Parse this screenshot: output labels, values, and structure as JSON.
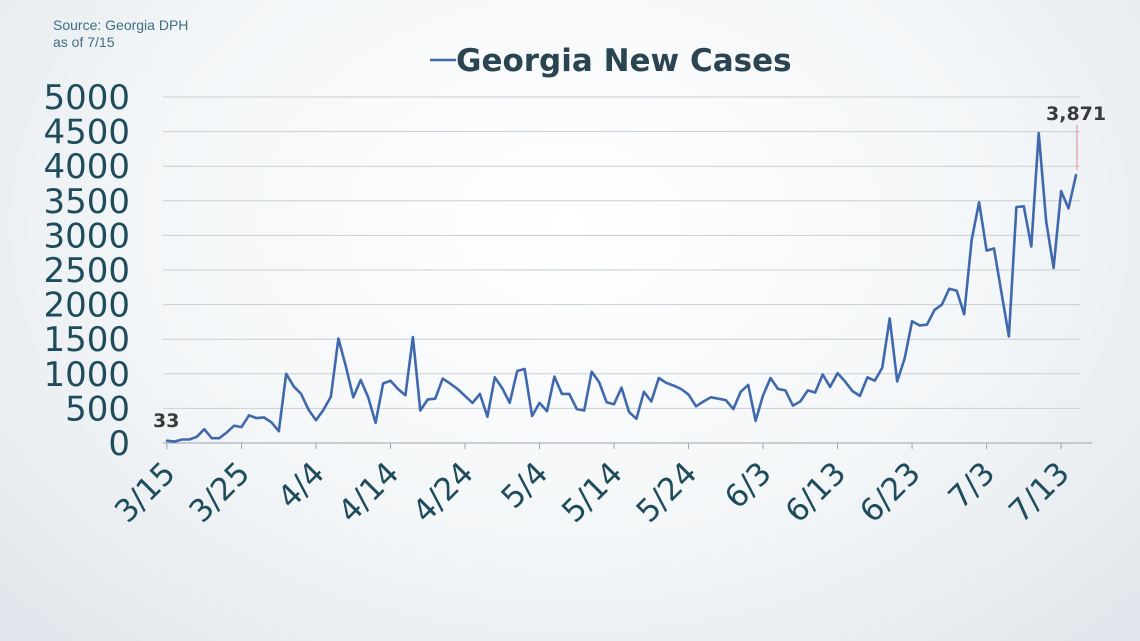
{
  "source": {
    "line1": "Source: Georgia DPH",
    "line2": "as of 7/15"
  },
  "chart_data": {
    "type": "line",
    "title": "Georgia New Cases",
    "xlabel": "",
    "ylabel": "",
    "ylim": [
      0,
      5000
    ],
    "yticks": [
      0,
      500,
      1000,
      1500,
      2000,
      2500,
      3000,
      3500,
      4000,
      4500,
      5000
    ],
    "ytick_labels": [
      "0",
      "500",
      "1000",
      "1500",
      "2000",
      "2500",
      "3000",
      "3500",
      "4000",
      "4500",
      "5000"
    ],
    "grid": true,
    "legend": "top-center",
    "line_color": "#4068ac",
    "xtick_labels": [
      "3/15",
      "3/25",
      "4/4",
      "4/14",
      "4/24",
      "5/4",
      "5/14",
      "5/24",
      "6/3",
      "6/13",
      "6/23",
      "7/3",
      "7/13"
    ],
    "annotations": {
      "first": "33",
      "last": "3,871"
    },
    "series": [
      {
        "name": "Georgia New Cases",
        "x": [
          "3/15",
          "3/16",
          "3/17",
          "3/18",
          "3/19",
          "3/20",
          "3/21",
          "3/22",
          "3/23",
          "3/24",
          "3/25",
          "3/26",
          "3/27",
          "3/28",
          "3/29",
          "3/30",
          "3/31",
          "4/1",
          "4/2",
          "4/3",
          "4/4",
          "4/5",
          "4/6",
          "4/7",
          "4/8",
          "4/9",
          "4/10",
          "4/11",
          "4/12",
          "4/13",
          "4/14",
          "4/15",
          "4/16",
          "4/17",
          "4/18",
          "4/19",
          "4/20",
          "4/21",
          "4/22",
          "4/23",
          "4/24",
          "4/25",
          "4/26",
          "4/27",
          "4/28",
          "4/29",
          "4/30",
          "5/1",
          "5/2",
          "5/3",
          "5/4",
          "5/5",
          "5/6",
          "5/7",
          "5/8",
          "5/9",
          "5/10",
          "5/11",
          "5/12",
          "5/13",
          "5/14",
          "5/15",
          "5/16",
          "5/17",
          "5/18",
          "5/19",
          "5/20",
          "5/21",
          "5/22",
          "5/23",
          "5/24",
          "5/25",
          "5/26",
          "5/27",
          "5/28",
          "5/29",
          "5/30",
          "5/31",
          "6/1",
          "6/2",
          "6/3",
          "6/4",
          "6/5",
          "6/6",
          "6/7",
          "6/8",
          "6/9",
          "6/10",
          "6/11",
          "6/12",
          "6/13",
          "6/14",
          "6/15",
          "6/16",
          "6/17",
          "6/18",
          "6/19",
          "6/20",
          "6/21",
          "6/22",
          "6/23",
          "6/24",
          "6/25",
          "6/26",
          "6/27",
          "6/28",
          "6/29",
          "6/30",
          "7/1",
          "7/2",
          "7/3",
          "7/4",
          "7/5",
          "7/6",
          "7/7",
          "7/8",
          "7/9",
          "7/10",
          "7/11",
          "7/12",
          "7/13",
          "7/14",
          "7/15"
        ],
        "values": [
          33,
          20,
          50,
          50,
          90,
          200,
          70,
          70,
          150,
          250,
          230,
          400,
          360,
          370,
          300,
          170,
          1000,
          820,
          710,
          480,
          330,
          480,
          670,
          1510,
          1110,
          660,
          910,
          660,
          290,
          860,
          900,
          780,
          690,
          1530,
          470,
          630,
          640,
          930,
          860,
          780,
          680,
          580,
          710,
          380,
          950,
          790,
          580,
          1040,
          1070,
          390,
          580,
          460,
          960,
          710,
          710,
          490,
          470,
          1030,
          880,
          590,
          560,
          800,
          450,
          350,
          740,
          600,
          940,
          870,
          830,
          780,
          700,
          530,
          600,
          660,
          640,
          620,
          490,
          740,
          840,
          320,
          690,
          940,
          780,
          760,
          540,
          600,
          760,
          730,
          990,
          810,
          1010,
          890,
          750,
          680,
          950,
          900,
          1090,
          1800,
          890,
          1220,
          1760,
          1700,
          1710,
          1920,
          2000,
          2230,
          2200,
          1860,
          2940,
          3480,
          2780,
          2810,
          2170,
          1540,
          3410,
          3420,
          2840,
          4480,
          3200,
          2530,
          3640,
          3390,
          3871
        ]
      }
    ]
  }
}
